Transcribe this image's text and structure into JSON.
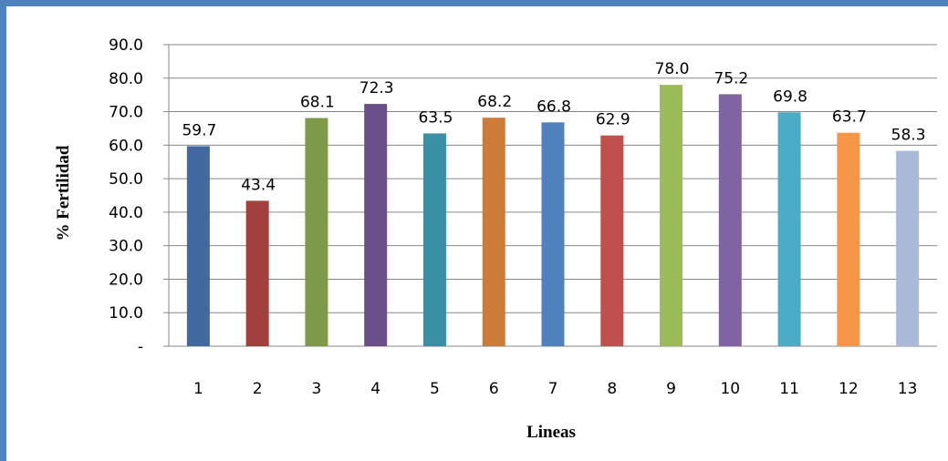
{
  "chart_data": {
    "type": "bar",
    "title": "",
    "xlabel": "Lineas",
    "ylabel": "% Fertilidad",
    "categories": [
      "1",
      "2",
      "3",
      "4",
      "5",
      "6",
      "7",
      "8",
      "9",
      "10",
      "11",
      "12",
      "13"
    ],
    "values": [
      59.7,
      43.4,
      68.1,
      72.3,
      63.5,
      68.2,
      66.8,
      62.9,
      78.0,
      75.2,
      69.8,
      63.7,
      58.3
    ],
    "value_labels": [
      "59.7",
      "43.4",
      "68.1",
      "72.3",
      "63.5",
      "68.2",
      "66.8",
      "62.9",
      "78.0",
      "75.2",
      "69.8",
      "63.7",
      "58.3"
    ],
    "ylim": [
      0,
      90
    ],
    "yticks": [
      0,
      10,
      20,
      30,
      40,
      50,
      60,
      70,
      80,
      90
    ],
    "ytick_labels": [
      "-",
      "10.0",
      "20.0",
      "30.0",
      "40.0",
      "50.0",
      "60.0",
      "70.0",
      "80.0",
      "90.0"
    ],
    "grid": true,
    "legend": "none",
    "colors": [
      "#4169a0",
      "#a2403d",
      "#7e9a48",
      "#6a4f8a",
      "#3a8fa4",
      "#cd7b38",
      "#4f81bd",
      "#c0504d",
      "#9bbb59",
      "#8064a2",
      "#4bacc6",
      "#f79646",
      "#a9b9d7"
    ]
  }
}
